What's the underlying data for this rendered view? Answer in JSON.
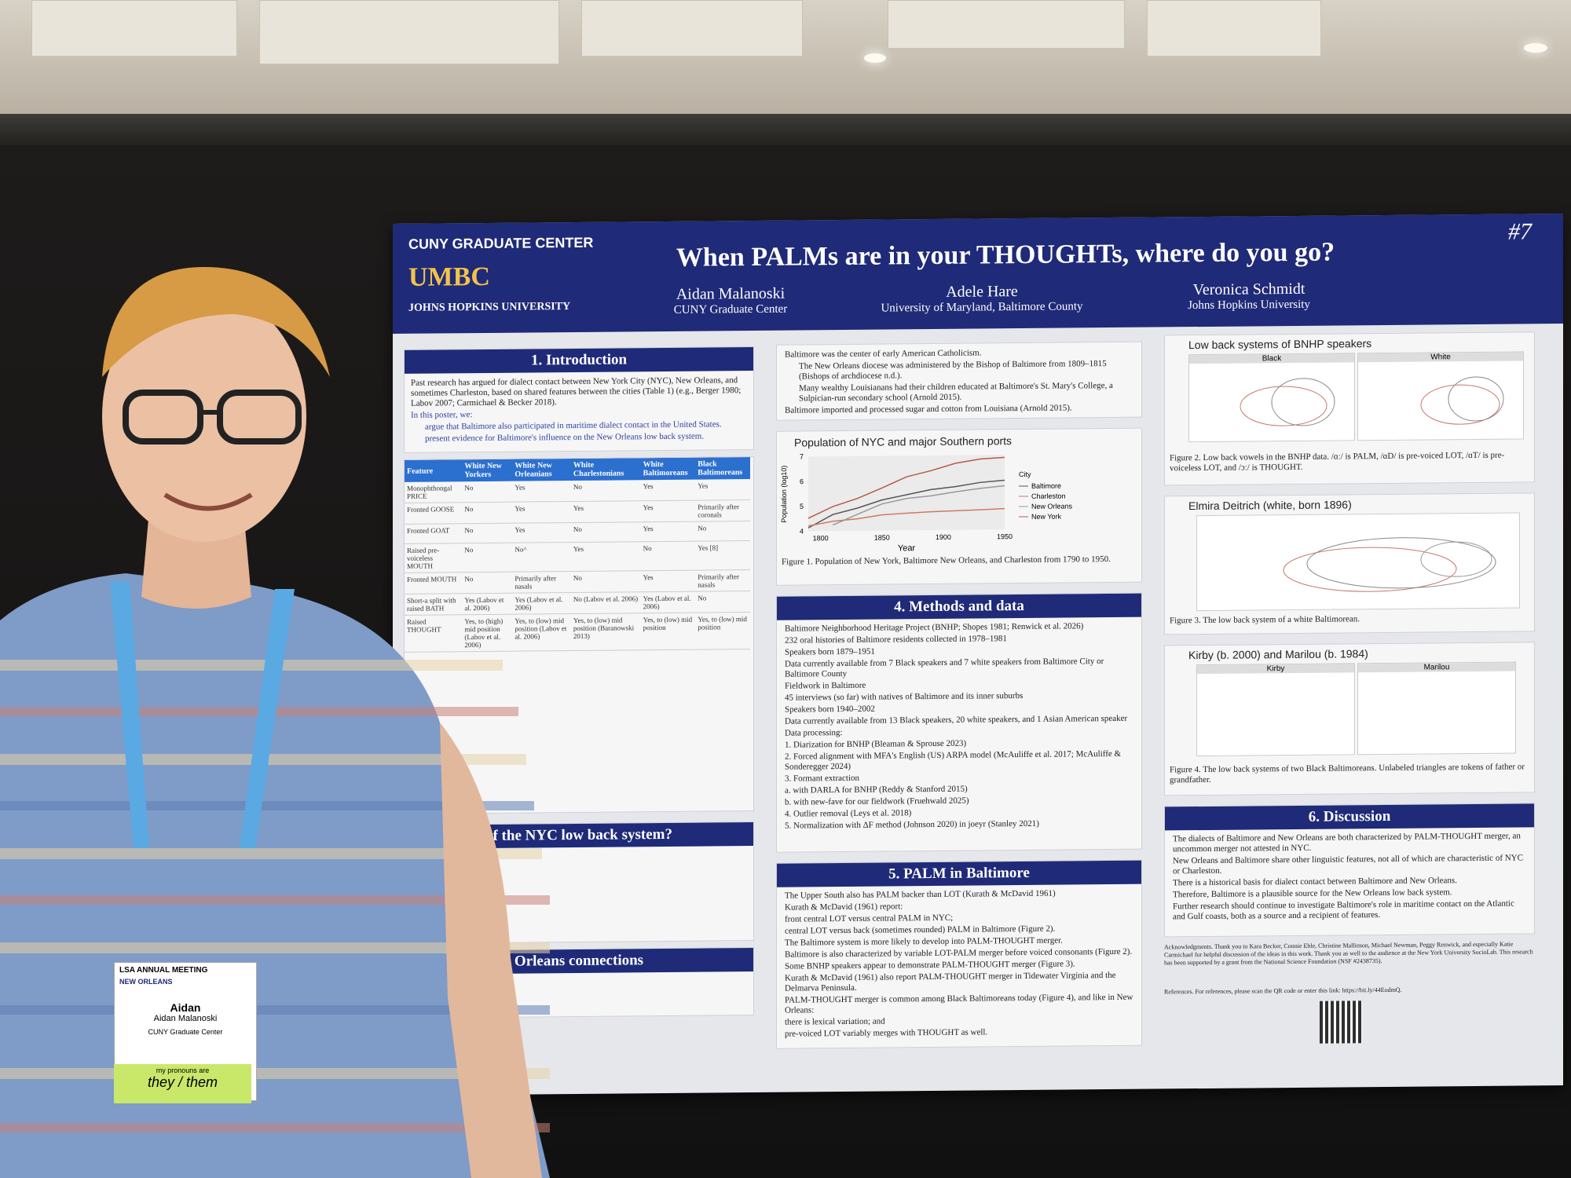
{
  "scene": {
    "poster_number": "#7",
    "logos": [
      "CUNY GRADUATE CENTER",
      "UMBC",
      "JOHNS HOPKINS UNIVERSITY"
    ],
    "badge": {
      "conference": "LSA ANNUAL MEETING",
      "city": "NEW ORLEANS",
      "first_name": "Aidan",
      "full_name": "Aidan Malanoski",
      "affiliation": "CUNY Graduate Center",
      "pronoun_label": "my pronouns are",
      "pronouns": "they / them"
    }
  },
  "poster": {
    "title": "When PALMs are in your THOUGHTs, where do you go?",
    "authors": [
      {
        "name": "Aidan Malanoski",
        "affiliation": "CUNY Graduate Center"
      },
      {
        "name": "Adele Hare",
        "affiliation": "University of Maryland, Baltimore County"
      },
      {
        "name": "Veronica Schmidt",
        "affiliation": "Johns Hopkins University"
      }
    ],
    "intro": {
      "heading": "1. Introduction",
      "p1": "Past research has argued for dialect contact between New York City (NYC), New Orleans, and sometimes Charleston, based on shared features between the cities (Table 1) (e.g., Berger 1980; Labov 2007; Carmichael & Becker 2018).",
      "p2": "In this poster, we:",
      "b1": "argue that Baltimore also participated in maritime dialect contact in the United States.",
      "b2": "present evidence for Baltimore's influence on the New Orleans low back system."
    },
    "table": {
      "headers": [
        "Feature",
        "White New Yorkers",
        "White New Orleanians",
        "White Charlestonians",
        "White Baltimoreans",
        "Black Baltimoreans"
      ],
      "rows": [
        [
          "Monophthongal PRICE",
          "No",
          "Yes",
          "No",
          "Yes",
          "Yes"
        ],
        [
          "Fronted GOOSE",
          "No",
          "Yes",
          "Yes",
          "Yes",
          "Primarily after coronals"
        ],
        [
          "Fronted GOAT",
          "No",
          "Yes",
          "No",
          "Yes",
          "No"
        ],
        [
          "Raised pre-voiceless MOUTH",
          "No",
          "No^",
          "Yes",
          "No",
          "Yes [8]"
        ],
        [
          "Fronted MOUTH",
          "No",
          "Primarily after nasals",
          "No",
          "Yes",
          "Primarily after nasals"
        ],
        [
          "Short-a split with raised BATH",
          "Yes (Labov et al. 2006)",
          "Yes (Labov et al. 2006)",
          "No (Labov et al. 2006)",
          "Yes (Labov et al. 2006)",
          "No"
        ],
        [
          "Raised THOUGHT",
          "Yes, to (high) mid position (Labov et al. 2006)",
          "Yes, to (low) mid position (Labov et al. 2006)",
          "Yes, to (low) mid position (Baranowski 2013)",
          "Yes, to (low) mid position",
          "Yes, to (low) mid position"
        ]
      ]
    },
    "s2_heading": "of the NYC low back system?",
    "s3_heading": "Orleans connections",
    "catholic": {
      "b1": "Baltimore was the center of early American Catholicism.",
      "b2": "The New Orleans diocese was administered by the Bishop of Baltimore from 1809–1815 (Bishops of archdiocese n.d.).",
      "b3": "Many wealthy Louisianans had their children educated at Baltimore's St. Mary's College, a Sulpician-run secondary school (Arnold 2015).",
      "b4": "Baltimore imported and processed sugar and cotton from Louisiana (Arnold 2015)."
    },
    "fig1": {
      "title": "Population of NYC and major Southern ports",
      "caption": "Figure 1. Population of New York, Baltimore New Orleans, and Charleston from 1790 to 1950."
    },
    "methods": {
      "heading": "4. Methods and data",
      "lines": [
        "Baltimore Neighborhood Heritage Project (BNHP; Shopes 1981; Renwick et al. 2026)",
        "232 oral histories of Baltimore residents collected in 1978–1981",
        "Speakers born 1879–1951",
        "Data currently available from 7 Black speakers and 7 white speakers from Baltimore City or Baltimore County",
        "Fieldwork in Baltimore",
        "45 interviews (so far) with natives of Baltimore and its inner suburbs",
        "Speakers born 1940–2002",
        "Data currently available from 13 Black speakers, 20 white speakers, and 1 Asian American speaker",
        "Data processing:",
        "1. Diarization for BNHP (Bleaman & Sprouse 2023)",
        "2. Forced alignment with MFA's English (US) ARPA model (McAuliffe et al. 2017; McAuliffe & Sonderegger 2024)",
        "3. Formant extraction",
        "a. with DARLA for BNHP (Reddy & Stanford 2015)",
        "b. with new-fave for our fieldwork (Fruehwald 2025)",
        "4. Outlier removal (Leys et al. 2018)",
        "5. Normalization with ΔF method (Johnson 2020) in joeyr (Stanley 2021)"
      ]
    },
    "palm": {
      "heading": "5. PALM in Baltimore",
      "lines": [
        "The Upper South also has PALM backer than LOT (Kurath & McDavid 1961)",
        "Kurath & McDavid (1961) report:",
        "front central LOT versus central PALM in NYC;",
        "central LOT versus back (sometimes rounded) PALM in Baltimore (Figure 2).",
        "The Baltimore system is more likely to develop into PALM-THOUGHT merger.",
        "Baltimore is also characterized by variable LOT-PALM merger before voiced consonants (Figure 2).",
        "Some BNHP speakers appear to demonstrate PALM-THOUGHT merger (Figure 3).",
        "Kurath & McDavid (1961) also report PALM-THOUGHT merger in Tidewater Virginia and the Delmarva Peninsula.",
        "PALM-THOUGHT merger is common among Black Baltimoreans today (Figure 4), and like in New Orleans:",
        "there is lexical variation; and",
        "pre-voiced LOT variably merges with THOUGHT as well."
      ]
    },
    "fig2": {
      "title": "Low back systems of BNHP speakers",
      "panels": [
        "Black",
        "White"
      ],
      "caption": "Figure 2. Low back vowels in the BNHP data. /ɑː/ is PALM, /ɑD/ is pre-voiced LOT, /ɑT/ is pre-voiceless LOT, and /ɔː/ is THOUGHT."
    },
    "fig3": {
      "title": "Elmira Deitrich (white, born 1896)",
      "caption": "Figure 3. The low back system of a white Baltimorean."
    },
    "fig4": {
      "title": "Kirby (b. 2000) and Marilou (b. 1984)",
      "panels": [
        "Kirby",
        "Marilou"
      ],
      "caption": "Figure 4. The low back systems of two Black Baltimoreans. Unlabeled triangles are tokens of father or grandfather."
    },
    "discussion": {
      "heading": "6. Discussion",
      "lines": [
        "The dialects of Baltimore and New Orleans are both characterized by PALM-THOUGHT merger, an uncommon merger not attested in NYC.",
        "New Orleans and Baltimore share other linguistic features, not all of which are characteristic of NYC or Charleston.",
        "There is a historical basis for dialect contact between Baltimore and New Orleans.",
        "Therefore, Baltimore is a plausible source for the New Orleans low back system.",
        "Further research should continue to investigate Baltimore's role in maritime contact on the Atlantic and Gulf coasts, both as a source and a recipient of features."
      ]
    },
    "ack": "Acknowledgments. Thank you to Kara Becker, Connie Eble, Christine Mallinson, Michael Newman, Peggy Renwick, and especially Katie Carmichael for helpful discussion of the ideas in this work. Thank you as well to the audience at the New York University SocioLab. This research has been supported by a grant from the National Science Foundation (NSF #2438735).",
    "refs": "References. For references, please scan the QR code or enter this link: https://bit.ly/44EodmQ."
  },
  "chart_data": [
    {
      "type": "line",
      "title": "Population of NYC and major Southern ports",
      "xlabel": "Year",
      "ylabel": "Population (log10)",
      "xlim": [
        1790,
        1950
      ],
      "ylim": [
        4,
        7
      ],
      "x": [
        1790,
        1810,
        1830,
        1850,
        1870,
        1890,
        1910,
        1930,
        1950
      ],
      "legend_title": "City",
      "legend_position": "right",
      "series": [
        {
          "name": "Baltimore",
          "color": "#555555",
          "values": [
            4.13,
            4.66,
            4.91,
            5.23,
            5.43,
            5.63,
            5.74,
            5.9,
            5.98
          ]
        },
        {
          "name": "Charleston",
          "color": "#d07a62",
          "values": [
            4.21,
            4.39,
            4.48,
            4.63,
            4.69,
            4.74,
            4.77,
            4.8,
            4.84
          ]
        },
        {
          "name": "New Orleans",
          "color": "#999999",
          "values": [
            null,
            4.24,
            4.66,
            5.07,
            5.28,
            5.38,
            5.53,
            5.66,
            5.76
          ]
        },
        {
          "name": "New York",
          "color": "#b85a4a",
          "values": [
            4.52,
            4.98,
            5.3,
            5.71,
            6.15,
            6.39,
            6.68,
            6.84,
            6.9
          ]
        }
      ]
    }
  ]
}
